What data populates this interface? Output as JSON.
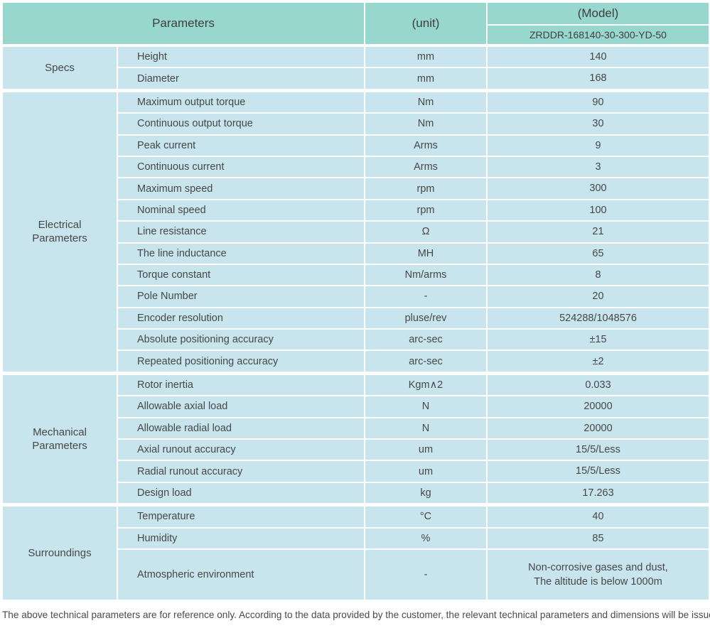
{
  "header": {
    "parameters_label": "Parameters",
    "unit_label": "(unit)",
    "model_label": "(Model)",
    "model_value": "ZRDDR-168140-30-300-YD-50"
  },
  "sections": [
    {
      "label": "Specs",
      "rows": [
        [
          "Height",
          "mm",
          "140"
        ],
        [
          "Diameter",
          "mm",
          "168"
        ]
      ]
    },
    {
      "label": "Electrical\nParameters",
      "rows": [
        [
          "Maximum output torque",
          "Nm",
          "90"
        ],
        [
          "Continuous output torque",
          "Nm",
          "30"
        ],
        [
          "Peak current",
          "Arms",
          "9"
        ],
        [
          "Continuous current",
          "Arms",
          "3"
        ],
        [
          "Maximum speed",
          "rpm",
          "300"
        ],
        [
          "Nominal speed",
          "rpm",
          "100"
        ],
        [
          "Line resistance",
          "Ω",
          "21"
        ],
        [
          "The line inductance",
          "MH",
          "65"
        ],
        [
          "Torque constant",
          "Nm/arms",
          "8"
        ],
        [
          "Pole Number",
          "-",
          "20"
        ],
        [
          "Encoder resolution",
          "pluse/rev",
          "524288/1048576"
        ],
        [
          "Absolute positioning accuracy",
          "arc-sec",
          "±15"
        ],
        [
          "Repeated positioning accuracy",
          "arc-sec",
          "±2"
        ]
      ]
    },
    {
      "label": "Mechanical\nParameters",
      "rows": [
        [
          "Rotor inertia",
          "Kgm∧2",
          "0.033"
        ],
        [
          "Allowable axial load",
          "N",
          "20000"
        ],
        [
          "Allowable radial load",
          "N",
          "20000"
        ],
        [
          "Axial runout accuracy",
          "um",
          "15/5/Less"
        ],
        [
          "Radial runout accuracy",
          "um",
          "15/5/Less"
        ],
        [
          "Design load",
          "kg",
          "17.263"
        ]
      ]
    },
    {
      "label": "Surroundings",
      "rows": [
        [
          "Temperature",
          "°C",
          "40"
        ],
        [
          "Humidity",
          "%",
          "85"
        ],
        [
          "Atmospheric environment",
          "-",
          "Non-corrosive gases and dust,\nThe altitude is below 1000m"
        ]
      ]
    }
  ],
  "footer": {
    "note": "The above technical parameters are for reference only. According to the data provided by the customer, the relevant technical parameters and dimensions will be issued."
  },
  "colors": {
    "header_bg": "#98d7ce",
    "cell_bg": "#c8e5ed",
    "separator": "#ffffff",
    "text": "#474747"
  }
}
